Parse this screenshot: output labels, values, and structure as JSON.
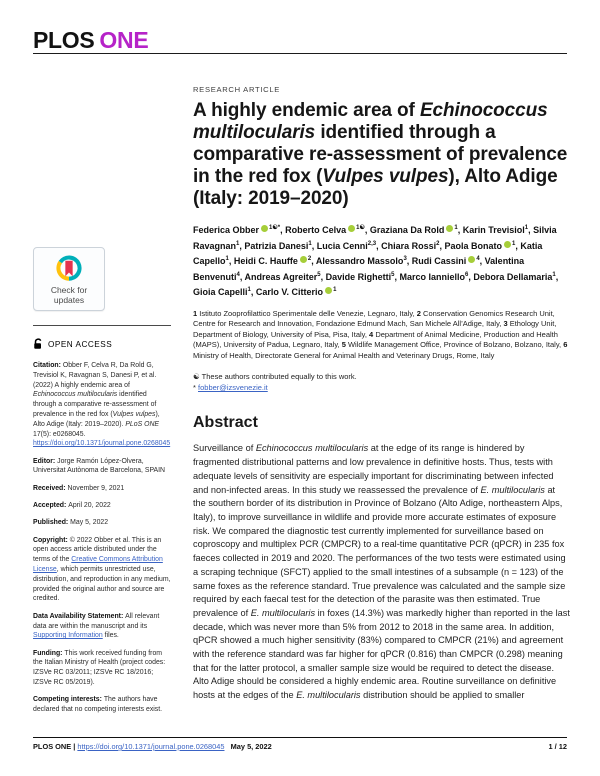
{
  "theme": {
    "accent": "#B623C8",
    "link": "#3A63C4",
    "orcid": "#A6CE39",
    "cm_teal": "#00AFB9",
    "cm_yellow": "#FFC20E",
    "cm_red": "#E5334D"
  },
  "brand": {
    "plos": "PLOS",
    "one": "ONE"
  },
  "kicker": "RESEARCH ARTICLE",
  "title": [
    {
      "t": "A highly endemic area of "
    },
    {
      "t": "Echinococcus multilocularis",
      "s": "i"
    },
    {
      "t": " identified through a comparative re-assessment of prevalence in the red fox ("
    },
    {
      "t": "Vulpes vulpes",
      "s": "i"
    },
    {
      "t": "), Alto Adige (Italy: 2019–2020)"
    }
  ],
  "authors": [
    {
      "name": "Federica Obber",
      "orcid": true,
      "sup": "1☯*"
    },
    {
      "name": "Roberto Celva",
      "orcid": true,
      "sup": "1☯"
    },
    {
      "name": "Graziana Da Rold",
      "orcid": true,
      "sup": "1"
    },
    {
      "name": "Karin Trevisiol",
      "orcid": false,
      "sup": "1"
    },
    {
      "name": "Silvia Ravagnan",
      "orcid": false,
      "sup": "1"
    },
    {
      "name": "Patrizia Danesi",
      "orcid": false,
      "sup": "1"
    },
    {
      "name": "Lucia Cenni",
      "orcid": false,
      "sup": "2,3"
    },
    {
      "name": "Chiara Rossi",
      "orcid": false,
      "sup": "2"
    },
    {
      "name": "Paola Bonato",
      "orcid": true,
      "sup": "1"
    },
    {
      "name": "Katia Capello",
      "orcid": false,
      "sup": "1"
    },
    {
      "name": "Heidi C. Hauffe",
      "orcid": true,
      "sup": "2"
    },
    {
      "name": "Alessandro Massolo",
      "orcid": false,
      "sup": "3"
    },
    {
      "name": "Rudi Cassini",
      "orcid": true,
      "sup": "4"
    },
    {
      "name": "Valentina Benvenuti",
      "orcid": false,
      "sup": "4"
    },
    {
      "name": "Andreas Agreiter",
      "orcid": false,
      "sup": "5"
    },
    {
      "name": "Davide Righetti",
      "orcid": false,
      "sup": "5"
    },
    {
      "name": "Marco Ianniello",
      "orcid": false,
      "sup": "6"
    },
    {
      "name": "Debora Dellamaria",
      "orcid": false,
      "sup": "1"
    },
    {
      "name": "Gioia Capelli",
      "orcid": false,
      "sup": "1"
    },
    {
      "name": "Carlo V. Citterio",
      "orcid": true,
      "sup": "1"
    }
  ],
  "affiliations": [
    {
      "t": "1 ",
      "s": "b"
    },
    {
      "t": "Istituto Zooprofilattico Sperimentale delle Venezie, Legnaro, Italy, "
    },
    {
      "t": "2 ",
      "s": "b"
    },
    {
      "t": "Conservation Genomics Research Unit, Centre for Research and Innovation, Fondazione Edmund Mach, San Michele All’Adige, Italy, "
    },
    {
      "t": "3 ",
      "s": "b"
    },
    {
      "t": "Ethology Unit, Department of Biology, University of Pisa, Pisa, Italy, "
    },
    {
      "t": "4 ",
      "s": "b"
    },
    {
      "t": "Department of Animal Medicine, Production and Health (MAPS), University of Padua, Legnaro, Italy, "
    },
    {
      "t": "5 ",
      "s": "b"
    },
    {
      "t": "Wildlife Management Office, Province of Bolzano, Bolzano, Italy, "
    },
    {
      "t": "6 ",
      "s": "b"
    },
    {
      "t": "Ministry of Health, Directorate General for Animal Health and Veterinary Drugs, Rome, Italy"
    }
  ],
  "notes": {
    "equal": "☯ These authors contributed equally to this work.",
    "email_prefix": "* ",
    "email": "fobber@izsvenezie.it"
  },
  "abstract": {
    "heading": "Abstract",
    "segments": [
      {
        "t": "Surveillance of "
      },
      {
        "t": "Echinococcus multilocularis",
        "s": "i"
      },
      {
        "t": " at the edge of its range is hindered by fragmented distributional patterns and low prevalence in definitive hosts. Thus, tests with adequate levels of sensitivity are especially important for discriminating between infected and non-infected areas. In this study we reassessed the prevalence of "
      },
      {
        "t": "E. multilocularis",
        "s": "i"
      },
      {
        "t": " at the southern border of its distribution in Province of Bolzano (Alto Adige, northeastern Alps, Italy), to improve surveillance in wildlife and provide more accurate estimates of exposure risk. We compared the diagnostic test currently implemented for surveillance based on coproscopy and multiplex PCR (CMPCR) to a real-time quantitative PCR (qPCR) in 235 fox faeces collected in 2019 and 2020. The performances of the two tests were estimated using a scraping technique (SFCT) applied to the small intestines of a subsample (n = 123) of the same foxes as the reference standard. True prevalence was calculated and the sample size required by each faecal test for the detection of the parasite was then estimated. True prevalence of "
      },
      {
        "t": "E. multilocularis",
        "s": "i"
      },
      {
        "t": " in foxes (14.3%) was markedly higher than reported in the last decade, which was never more than 5% from 2012 to 2018 in the same area. In addition, qPCR showed a much higher sensitivity (83%) compared to CMPCR (21%) and agreement with the reference standard was far higher for qPCR (0.816) than CMPCR (0.298) meaning that for the latter protocol, a smaller sample size would be required to detect the disease. Alto Adige should be considered a highly endemic area. Routine surveillance on definitive hosts at the edges of the "
      },
      {
        "t": "E. multilocularis",
        "s": "i"
      },
      {
        "t": " distribution should be applied to smaller"
      }
    ]
  },
  "sidebar": {
    "check_updates_label": "Check for updates",
    "open_access_label": "OPEN ACCESS",
    "citation": [
      {
        "t": "Citation: ",
        "s": "b"
      },
      {
        "t": "Obber F, Celva R, Da Rold G, Trevisiol K, Ravagnan S, Danesi P, et al. (2022) A highly endemic area of "
      },
      {
        "t": "Echinococcus multilocularis",
        "s": "i"
      },
      {
        "t": " identified through a comparative re-assessment of prevalence in the red fox ("
      },
      {
        "t": "Vulpes vulpes",
        "s": "i"
      },
      {
        "t": "), Alto Adige (Italy: 2019–2020). "
      },
      {
        "t": "PLoS ONE",
        "s": "i"
      },
      {
        "t": " 17(5): e0268045. "
      },
      {
        "t": "https://doi.org/10.1371/journal.pone.0268045",
        "s": "link",
        "n": "citation-doi-link"
      }
    ],
    "editor": [
      {
        "t": "Editor: ",
        "s": "b"
      },
      {
        "t": "Jorge Ramón López-Olvera, Universitat Autònoma de Barcelona, SPAIN"
      }
    ],
    "received": [
      {
        "t": "Received: ",
        "s": "b"
      },
      {
        "t": "November 9, 2021"
      }
    ],
    "accepted": [
      {
        "t": "Accepted: ",
        "s": "b"
      },
      {
        "t": "April 20, 2022"
      }
    ],
    "published": [
      {
        "t": "Published: ",
        "s": "b"
      },
      {
        "t": "May 5, 2022"
      }
    ],
    "copyright": [
      {
        "t": "Copyright: ",
        "s": "b"
      },
      {
        "t": "© 2022 Obber et al. This is an open access article distributed under the terms of the "
      },
      {
        "t": "Creative Commons Attribution License",
        "s": "link",
        "n": "cc-license-link"
      },
      {
        "t": ", which permits unrestricted use, distribution, and reproduction in any medium, provided the original author and source are credited."
      }
    ],
    "data_availability": [
      {
        "t": "Data Availability Statement: ",
        "s": "b"
      },
      {
        "t": "All relevant data are within the manuscript and its "
      },
      {
        "t": "Supporting Information",
        "s": "link",
        "n": "supporting-information-link"
      },
      {
        "t": " files."
      }
    ],
    "funding": [
      {
        "t": "Funding: ",
        "s": "b"
      },
      {
        "t": "This work received funding from the Italian Ministry of Health (project codes: IZSVe RC 03/2011; IZSVe RC 18/2016; IZSVe RC 05/2019)."
      }
    ],
    "competing": [
      {
        "t": "Competing interests: ",
        "s": "b"
      },
      {
        "t": "The authors have declared that no competing interests exist."
      }
    ]
  },
  "footer": {
    "left": [
      {
        "t": "PLOS ONE | ",
        "s": "b"
      },
      {
        "t": "https://doi.org/10.1371/journal.pone.0268045",
        "s": "link",
        "n": "footer-doi-link"
      },
      {
        "t": "   May 5, 2022",
        "s": "b"
      }
    ],
    "page_label": "1 / 12"
  }
}
